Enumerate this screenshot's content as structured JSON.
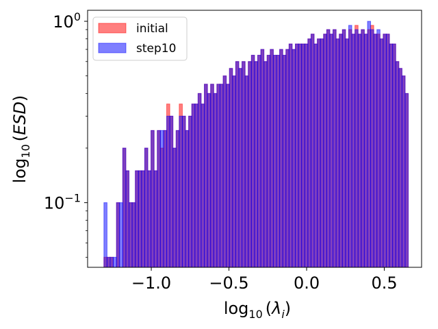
{
  "chart_data": {
    "type": "bar",
    "subtype": "overlaid-histogram",
    "yscale": "log",
    "xlabel": {
      "main": "log",
      "sub": "10",
      "arg": "λ",
      "arg_sub": "i"
    },
    "ylabel": {
      "main": "log",
      "sub": "10",
      "arg": "ESD"
    },
    "xlim": [
      -1.41,
      0.74
    ],
    "ylim": [
      0.044,
      1.15
    ],
    "x_ticks": [
      {
        "value": -1.0,
        "label": "−1.0"
      },
      {
        "value": -0.5,
        "label": "−0.5"
      },
      {
        "value": 0.0,
        "label": "0.0"
      },
      {
        "value": 0.5,
        "label": "0.5"
      }
    ],
    "y_ticks": [
      {
        "value": 1.0,
        "base": "10",
        "exp": "0"
      },
      {
        "value": 0.1,
        "base": "10",
        "exp": "−1"
      }
    ],
    "legend_position": "top-left",
    "bins": {
      "start": -1.305,
      "width": 0.0202
    },
    "series": [
      {
        "name": "initial",
        "color": "#ff0000",
        "alpha": 0.5,
        "values": [
          0.05,
          0.05,
          0.05,
          0,
          0.1,
          0,
          0.2,
          0.15,
          0.1,
          0.1,
          0.15,
          0.15,
          0.15,
          0.2,
          0.15,
          0.25,
          0.15,
          0.25,
          0.2,
          0.25,
          0.35,
          0.3,
          0.2,
          0.25,
          0.35,
          0.3,
          0.25,
          0.3,
          0.35,
          0.35,
          0.4,
          0.35,
          0.45,
          0.4,
          0.45,
          0.4,
          0.45,
          0.45,
          0.5,
          0.45,
          0.55,
          0.5,
          0.6,
          0.55,
          0.6,
          0.5,
          0.6,
          0.65,
          0.6,
          0.65,
          0.7,
          0.6,
          0.65,
          0.7,
          0.65,
          0.65,
          0.7,
          0.65,
          0.7,
          0.75,
          0.7,
          0.75,
          0.75,
          0.75,
          0.75,
          0.8,
          0.85,
          0.75,
          0.8,
          0.8,
          0.85,
          0.9,
          0.85,
          0.9,
          0.8,
          0.85,
          0.9,
          0.8,
          0.9,
          0.85,
          0.95,
          0.85,
          0.9,
          0.85,
          0.9,
          0.95,
          0.85,
          0.85,
          0.8,
          0.85,
          0.85,
          0.75,
          0.75,
          0.6,
          0.55,
          0.5,
          0.4
        ]
      },
      {
        "name": "step10",
        "color": "#0000ff",
        "alpha": 0.5,
        "values": [
          0.1,
          0.05,
          0.05,
          0.05,
          0.1,
          0.1,
          0.2,
          0.15,
          0.1,
          0.1,
          0.15,
          0.15,
          0.15,
          0.2,
          0.15,
          0.25,
          0.15,
          0.25,
          0.25,
          0.25,
          0.3,
          0.3,
          0.2,
          0.25,
          0.3,
          0.3,
          0.25,
          0.3,
          0.35,
          0.35,
          0.4,
          0.35,
          0.45,
          0.4,
          0.45,
          0.4,
          0.45,
          0.45,
          0.5,
          0.45,
          0.55,
          0.5,
          0.6,
          0.55,
          0.6,
          0.5,
          0.6,
          0.65,
          0.6,
          0.65,
          0.7,
          0.6,
          0.65,
          0.7,
          0.65,
          0.65,
          0.7,
          0.65,
          0.7,
          0.75,
          0.7,
          0.75,
          0.75,
          0.75,
          0.75,
          0.8,
          0.85,
          0.75,
          0.8,
          0.8,
          0.85,
          0.9,
          0.85,
          0.9,
          0.8,
          0.85,
          0.9,
          0.8,
          0.95,
          0.85,
          0.9,
          0.85,
          0.9,
          0.85,
          1.0,
          0.9,
          0.85,
          0.9,
          0.8,
          0.85,
          0.85,
          0.75,
          0.75,
          0.6,
          0.55,
          0.5,
          0.4
        ]
      }
    ]
  }
}
